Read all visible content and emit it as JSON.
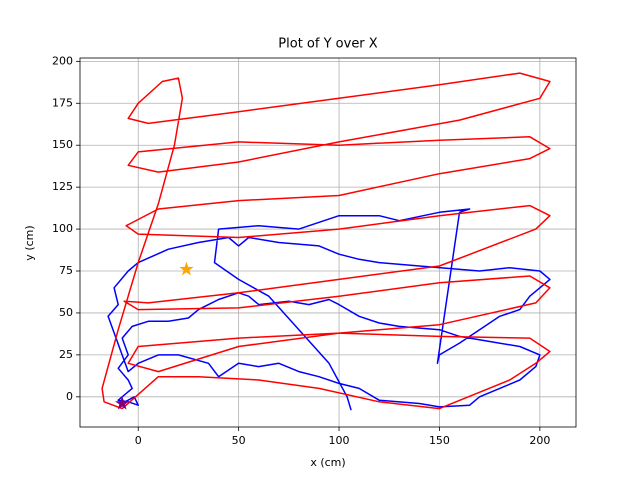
{
  "chart_data": {
    "type": "line",
    "title": "Plot of Y over X",
    "xlabel": "x (cm)",
    "ylabel": "y (cm)",
    "xlim": [
      -29,
      218
    ],
    "ylim": [
      -18,
      202
    ],
    "xticks": [
      0,
      50,
      100,
      150,
      200
    ],
    "yticks": [
      0,
      25,
      50,
      75,
      100,
      125,
      150,
      175,
      200
    ],
    "grid": true,
    "series": [
      {
        "color": "#0000ff",
        "x": [
          -8,
          -2,
          0,
          -5,
          -10,
          -3,
          -5,
          -10,
          -5,
          -8,
          -3,
          5,
          15,
          25,
          30,
          35,
          40,
          50,
          55,
          60,
          75,
          85,
          95,
          100,
          110,
          120,
          130,
          150,
          160,
          175,
          190,
          200,
          198,
          190,
          180,
          170,
          165,
          150,
          140,
          120,
          110,
          100,
          90,
          80,
          70,
          60,
          50,
          40,
          35,
          20,
          10,
          0,
          -5,
          -15,
          -10,
          -12,
          -5,
          0,
          15,
          30,
          45,
          50,
          55,
          70,
          90,
          100,
          110,
          120,
          140,
          170,
          185,
          200,
          205,
          200,
          195,
          190,
          180,
          170,
          160,
          150,
          149,
          160,
          165,
          150,
          130,
          120,
          100,
          80,
          60,
          40,
          38,
          50,
          65,
          80,
          95,
          104,
          106
        ],
        "values": [
          -4,
          0,
          -5,
          -3,
          -2,
          5,
          10,
          17,
          25,
          35,
          42,
          45,
          45,
          47,
          52,
          55,
          58,
          62,
          60,
          55,
          57,
          55,
          58,
          55,
          48,
          44,
          42,
          40,
          36,
          33,
          30,
          25,
          18,
          10,
          5,
          0,
          -5,
          -6,
          -4,
          -2,
          5,
          8,
          12,
          15,
          20,
          18,
          20,
          12,
          20,
          25,
          25,
          20,
          15,
          48,
          55,
          65,
          75,
          80,
          88,
          92,
          95,
          90,
          95,
          92,
          90,
          85,
          82,
          80,
          78,
          75,
          77,
          75,
          70,
          65,
          60,
          52,
          48,
          40,
          32,
          25,
          20,
          110,
          112,
          110,
          105,
          108,
          108,
          100,
          102,
          100,
          80,
          70,
          60,
          40,
          20,
          0,
          -8
        ]
      },
      {
        "color": "#ff0000",
        "x": [
          -8,
          -17,
          -18,
          -10,
          0,
          10,
          18,
          22,
          20,
          12,
          0,
          -5,
          5,
          50,
          100,
          150,
          190,
          205,
          200,
          160,
          100,
          50,
          10,
          -5,
          0,
          50,
          100,
          150,
          195,
          205,
          195,
          150,
          100,
          50,
          10,
          -6,
          0,
          50,
          100,
          150,
          195,
          205,
          198,
          150,
          100,
          50,
          5,
          -7,
          0,
          50,
          100,
          150,
          195,
          205,
          198,
          150,
          100,
          50,
          10,
          -5,
          0,
          50,
          100,
          150,
          195,
          205,
          198,
          185,
          150,
          120,
          90,
          60,
          30,
          10,
          -8
        ],
        "values": [
          -7,
          -3,
          5,
          40,
          80,
          115,
          150,
          178,
          190,
          188,
          175,
          166,
          163,
          170,
          178,
          186,
          193,
          188,
          178,
          165,
          152,
          140,
          134,
          138,
          146,
          152,
          150,
          153,
          155,
          148,
          142,
          133,
          120,
          117,
          112,
          102,
          97,
          95,
          100,
          108,
          114,
          108,
          100,
          78,
          70,
          62,
          56,
          57,
          52,
          53,
          60,
          68,
          72,
          65,
          56,
          43,
          38,
          30,
          15,
          20,
          30,
          35,
          38,
          36,
          35,
          27,
          20,
          10,
          -7,
          -3,
          5,
          10,
          12,
          12,
          -7
        ]
      }
    ],
    "markers": [
      {
        "color": "#ffa500",
        "x": [
          24
        ],
        "values": [
          76
        ]
      },
      {
        "color": "#800080",
        "x": [
          -8
        ],
        "values": [
          -4
        ]
      }
    ]
  }
}
